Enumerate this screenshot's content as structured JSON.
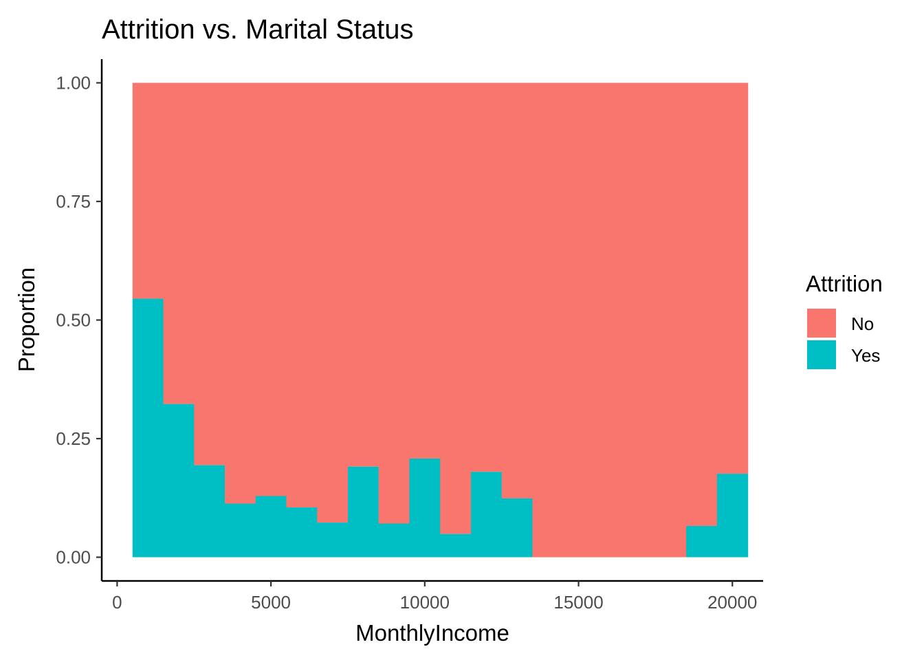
{
  "chart_data": {
    "type": "bar",
    "stacked": true,
    "position": "fill",
    "title": "Attrition vs. Marital Status",
    "xlabel": "MonthlyIncome",
    "ylabel": "Proportion",
    "xlim": [
      -500,
      21000
    ],
    "ylim": [
      -0.05,
      1.05
    ],
    "x_ticks": [
      0,
      5000,
      10000,
      15000,
      20000
    ],
    "x_tick_labels": [
      "0",
      "5000",
      "10000",
      "15000",
      "20000"
    ],
    "y_ticks": [
      0,
      0.25,
      0.5,
      0.75,
      1.0
    ],
    "y_tick_labels": [
      "0.00",
      "0.25",
      "0.50",
      "0.75",
      "1.00"
    ],
    "bins": [
      {
        "x0": 500,
        "x1": 1500,
        "yes": 0.545
      },
      {
        "x0": 1500,
        "x1": 2500,
        "yes": 0.323
      },
      {
        "x0": 2500,
        "x1": 3500,
        "yes": 0.194
      },
      {
        "x0": 3500,
        "x1": 4500,
        "yes": 0.113
      },
      {
        "x0": 4500,
        "x1": 5500,
        "yes": 0.129
      },
      {
        "x0": 5500,
        "x1": 6500,
        "yes": 0.105
      },
      {
        "x0": 6500,
        "x1": 7500,
        "yes": 0.073
      },
      {
        "x0": 7500,
        "x1": 8500,
        "yes": 0.191
      },
      {
        "x0": 8500,
        "x1": 9500,
        "yes": 0.071
      },
      {
        "x0": 9500,
        "x1": 10500,
        "yes": 0.208
      },
      {
        "x0": 10500,
        "x1": 11500,
        "yes": 0.049
      },
      {
        "x0": 11500,
        "x1": 12500,
        "yes": 0.18
      },
      {
        "x0": 12500,
        "x1": 13500,
        "yes": 0.124
      },
      {
        "x0": 13500,
        "x1": 14500,
        "yes": 0.0
      },
      {
        "x0": 14500,
        "x1": 15500,
        "yes": 0.0
      },
      {
        "x0": 15500,
        "x1": 16500,
        "yes": 0.0
      },
      {
        "x0": 16500,
        "x1": 17500,
        "yes": 0.0
      },
      {
        "x0": 17500,
        "x1": 18500,
        "yes": 0.0
      },
      {
        "x0": 18500,
        "x1": 19500,
        "yes": 0.066
      },
      {
        "x0": 19500,
        "x1": 20500,
        "yes": 0.176
      }
    ],
    "legend": {
      "title": "Attrition",
      "position": "right",
      "entries": [
        {
          "name": "No",
          "color": "#F8766D"
        },
        {
          "name": "Yes",
          "color": "#00BFC4"
        }
      ]
    },
    "grid": false
  }
}
